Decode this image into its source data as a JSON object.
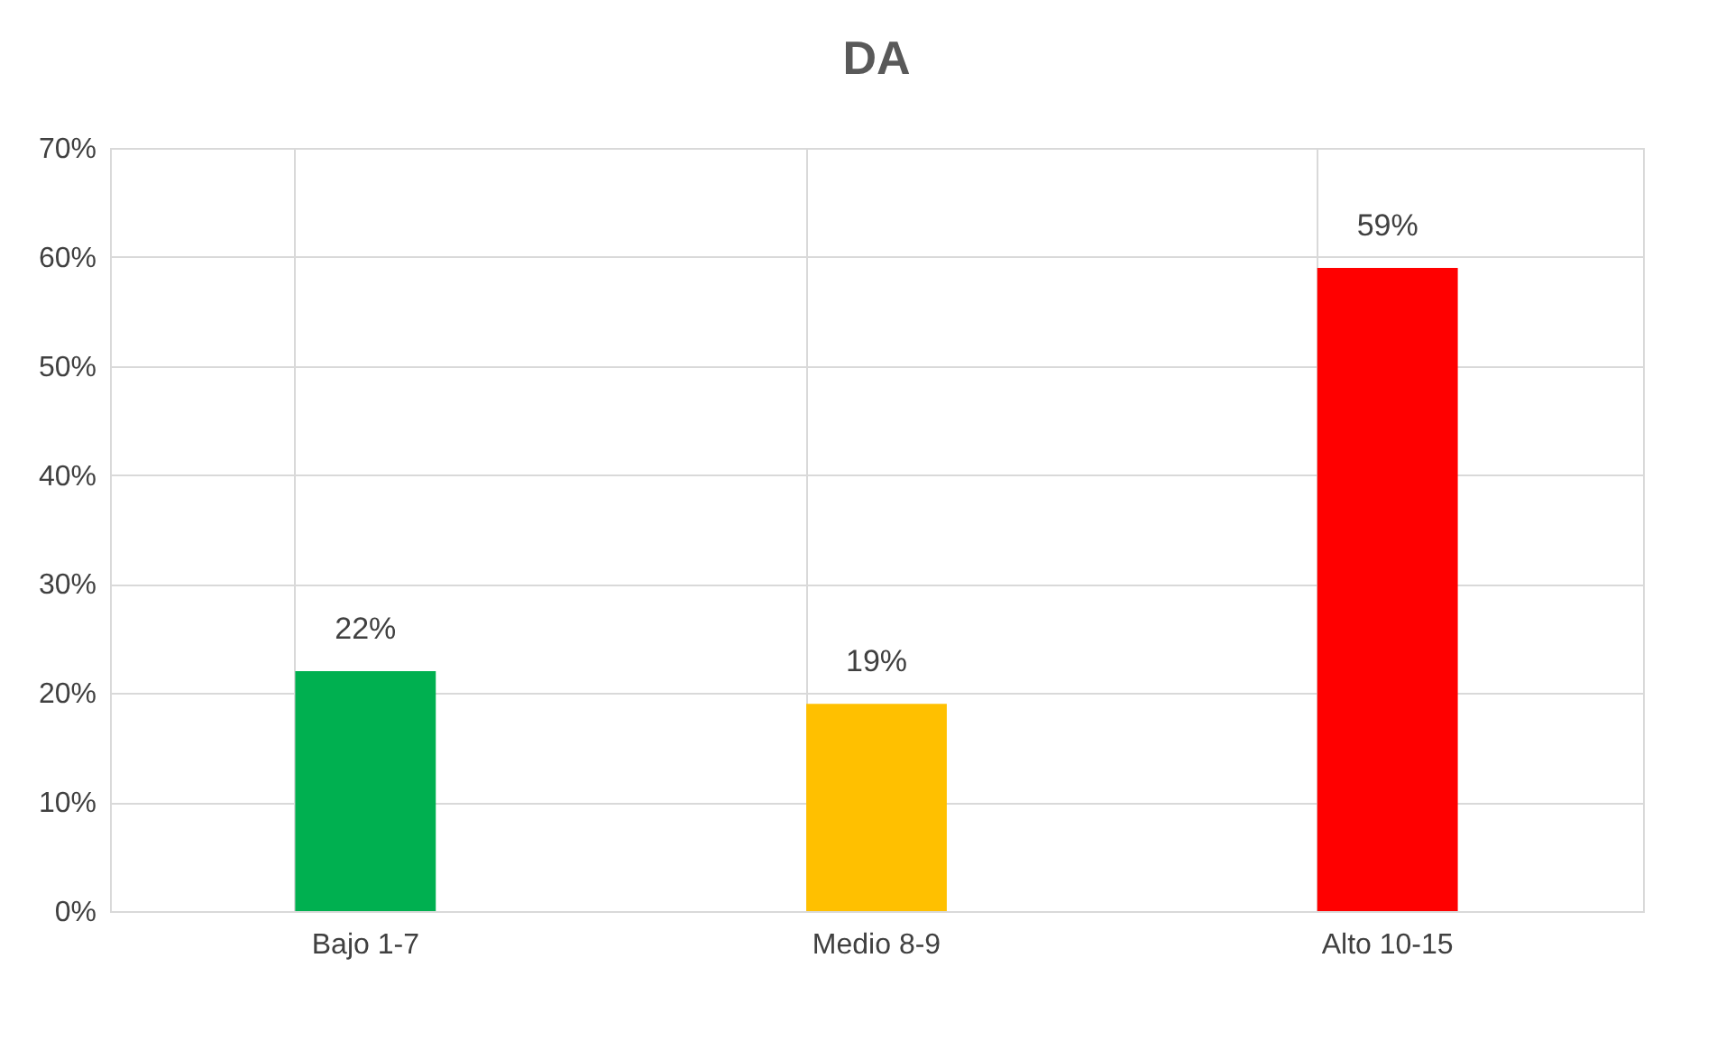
{
  "chart_data": {
    "type": "bar",
    "title": "DA",
    "categories": [
      "Bajo 1-7",
      "Medio 8-9",
      "Alto 10-15"
    ],
    "values": [
      22,
      19,
      59
    ],
    "colors": [
      "#00b050",
      "#ffc000",
      "#ff0000"
    ],
    "value_labels": [
      "22%",
      "19%",
      "59%"
    ],
    "ylim": [
      0,
      70
    ],
    "yticks": [
      {
        "value": 0,
        "label": "0%"
      },
      {
        "value": 10,
        "label": "10%"
      },
      {
        "value": 20,
        "label": "20%"
      },
      {
        "value": 30,
        "label": "30%"
      },
      {
        "value": 40,
        "label": "40%"
      },
      {
        "value": 50,
        "label": "50%"
      },
      {
        "value": 60,
        "label": "60%"
      },
      {
        "value": 70,
        "label": "70%"
      }
    ],
    "grid": true
  }
}
